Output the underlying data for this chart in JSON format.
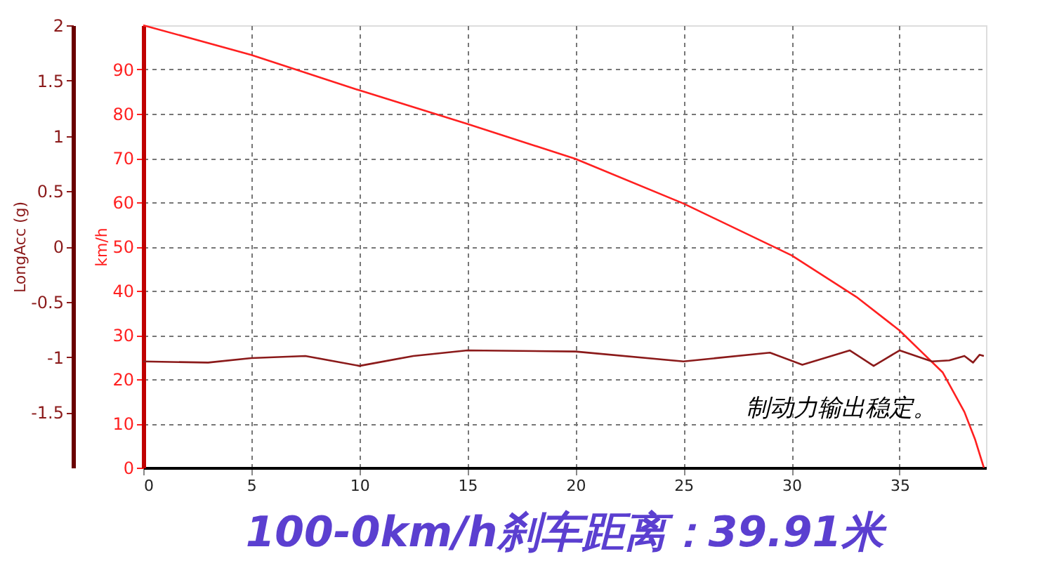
{
  "chart_data": {
    "type": "line",
    "title": "100-0km/h刹车距离：39.91米",
    "ylabel": "km/h",
    "y2label": "LongAcc (g)",
    "xlim": [
      0,
      39
    ],
    "xticks": [
      0,
      5,
      10,
      15,
      20,
      25,
      30,
      35
    ],
    "ylim": [
      0,
      100
    ],
    "yticks": [
      0,
      10,
      20,
      30,
      40,
      50,
      60,
      70,
      80,
      90
    ],
    "y2lim": [
      -2,
      2
    ],
    "y2ticks": [
      -1.5,
      -1,
      -0.5,
      0,
      0.5,
      1,
      1.5,
      2
    ],
    "grid": true,
    "marker": "none",
    "line_style": "solid",
    "annotations": [
      "制动力输出稳定。"
    ],
    "series": [
      {
        "color": "#ff2020",
        "x": [
          0,
          5,
          10,
          15,
          20,
          25,
          30,
          33,
          35,
          37,
          38,
          38.5,
          38.9
        ],
        "values": [
          100,
          93.3,
          85.3,
          77.7,
          69.8,
          59.7,
          48,
          38.6,
          31,
          21.5,
          12.6,
          6.3,
          0
        ]
      },
      {
        "color": "#8b1a1a",
        "axis": "y2",
        "x": [
          0,
          3,
          5,
          7.5,
          10,
          12.5,
          15,
          20,
          25,
          29,
          30.5,
          32.7,
          33.8,
          35,
          36.5,
          37.3,
          38,
          38.4,
          38.7,
          38.9
        ],
        "values": [
          -1.04,
          -1.05,
          -1.01,
          -0.99,
          -1.08,
          -0.99,
          -0.94,
          -0.95,
          -1.04,
          -0.96,
          -1.07,
          -0.94,
          -1.08,
          -0.94,
          -1.04,
          -1.03,
          -0.99,
          -1.05,
          -0.98,
          -0.99
        ]
      }
    ]
  }
}
